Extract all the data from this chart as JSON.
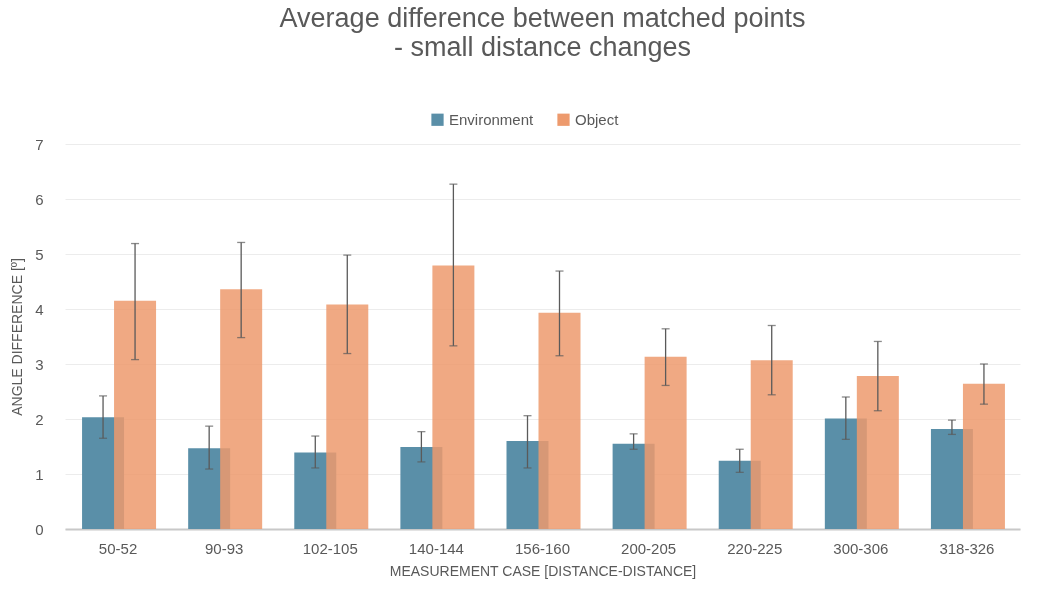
{
  "chart_data": {
    "type": "bar",
    "title": "Average difference between matched points\n- small distance changes",
    "xlabel": "MEASUREMENT CASE [DISTANCE-DISTANCE]",
    "ylabel": "ANGLE DIFFERENCE [º]",
    "categories": [
      "50-52",
      "90-93",
      "102-105",
      "140-144",
      "156-160",
      "200-205",
      "220-225",
      "300-306",
      "318-326"
    ],
    "series": [
      {
        "name": "Environment",
        "color": "#5a8fa8",
        "values": [
          2.03,
          1.47,
          1.39,
          1.49,
          1.6,
          1.55,
          1.24,
          2.01,
          1.82
        ],
        "errors": [
          [
            1.65,
            2.42
          ],
          [
            1.09,
            1.87
          ],
          [
            1.11,
            1.69
          ],
          [
            1.22,
            1.77
          ],
          [
            1.11,
            2.06
          ],
          [
            1.45,
            1.73
          ],
          [
            1.03,
            1.45
          ],
          [
            1.63,
            2.4
          ],
          [
            1.72,
            1.98
          ]
        ]
      },
      {
        "name": "Object",
        "color": "#ed9a6d",
        "values": [
          4.15,
          4.36,
          4.08,
          4.79,
          3.93,
          3.13,
          3.07,
          2.78,
          2.64
        ],
        "errors": [
          [
            3.08,
            5.19
          ],
          [
            3.48,
            5.21
          ],
          [
            3.19,
            4.98
          ],
          [
            3.33,
            6.27
          ],
          [
            3.15,
            4.69
          ],
          [
            2.61,
            3.64
          ],
          [
            2.44,
            3.7
          ],
          [
            2.15,
            3.41
          ],
          [
            2.27,
            3.0
          ]
        ]
      }
    ],
    "ylim": [
      0,
      7
    ],
    "yticks": [
      0,
      1,
      2,
      3,
      4,
      5,
      6,
      7
    ],
    "grid": "y",
    "legend": "top"
  }
}
